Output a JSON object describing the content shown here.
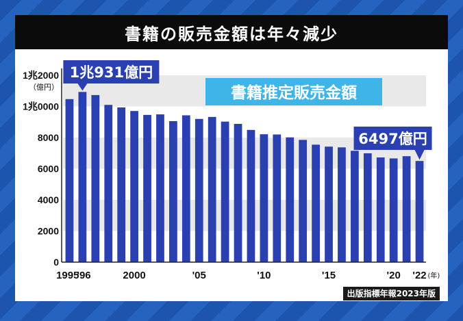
{
  "title": "書籍の販売金額は年々減少",
  "source_note": "出版指標年報2023年版",
  "colors": {
    "bar": "#2a3fb0",
    "band": "#e9e9e9",
    "banner": "#3fb4e6",
    "callout": "#2a3fb0"
  },
  "chart_data": {
    "type": "bar",
    "title": "書籍推定販売金額",
    "y_unit_label": "（億円）",
    "ylim": [
      0,
      12000
    ],
    "y_ticks": [
      {
        "value": 0,
        "label": "0"
      },
      {
        "value": 2000,
        "label": "2000"
      },
      {
        "value": 4000,
        "label": "4000"
      },
      {
        "value": 6000,
        "label": "6000"
      },
      {
        "value": 8000,
        "label": "8000"
      },
      {
        "value": 10000,
        "label": "1兆0000"
      },
      {
        "value": 12000,
        "label": "1兆2000"
      }
    ],
    "x_tick_labels": [
      {
        "index": 0,
        "label": "1995"
      },
      {
        "index": 1,
        "label": "'96"
      },
      {
        "index": 5,
        "label": "2000"
      },
      {
        "index": 10,
        "label": "'05"
      },
      {
        "index": 15,
        "label": "'10"
      },
      {
        "index": 20,
        "label": "'15"
      },
      {
        "index": 25,
        "label": "'20"
      },
      {
        "index": 27,
        "label": "'22"
      }
    ],
    "x_unit_label": "(年)",
    "categories": [
      "1995",
      "1996",
      "1997",
      "1998",
      "1999",
      "2000",
      "2001",
      "2002",
      "2003",
      "2004",
      "2005",
      "2006",
      "2007",
      "2008",
      "2009",
      "2010",
      "2011",
      "2012",
      "2013",
      "2014",
      "2015",
      "2016",
      "2017",
      "2018",
      "2019",
      "2020",
      "2021",
      "2022"
    ],
    "values": [
      10470,
      10931,
      10730,
      10100,
      9936,
      9706,
      9456,
      9490,
      9056,
      9429,
      9197,
      9326,
      9026,
      8878,
      8492,
      8213,
      8199,
      8013,
      7851,
      7544,
      7419,
      7370,
      7152,
      6991,
      6723,
      6661,
      6804,
      6497
    ],
    "callouts": [
      {
        "index": 1,
        "label": "1兆931億円"
      },
      {
        "index": 27,
        "label": "6497億円"
      }
    ]
  }
}
